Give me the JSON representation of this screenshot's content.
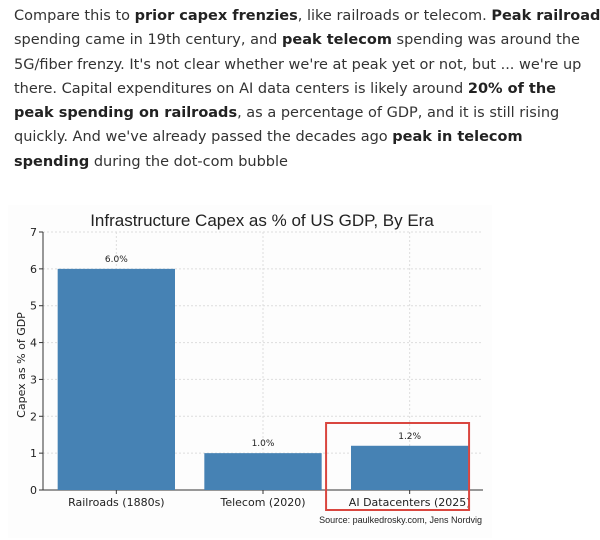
{
  "paragraph": {
    "lines": [
      [
        {
          "text": "Compare this to ",
          "bold": false
        },
        {
          "text": "prior capex frenzies",
          "bold": true
        },
        {
          "text": ", like railroads or telecom. ",
          "bold": false
        },
        {
          "text": "Peak railroad",
          "bold": true
        }
      ],
      [
        {
          "text": "spending came in 19th century, and ",
          "bold": false
        },
        {
          "text": "peak telecom",
          "bold": true
        },
        {
          "text": " spending was around the",
          "bold": false
        }
      ],
      [
        {
          "text": "5G/fiber frenzy. It's not clear whether we're at peak yet or not, but ... we're up",
          "bold": false
        }
      ],
      [
        {
          "text": "there. Capital expenditures on AI data centers is likely around ",
          "bold": false
        },
        {
          "text": "20% of the",
          "bold": true
        }
      ],
      [
        {
          "text": "peak spending on railroads",
          "bold": true
        },
        {
          "text": ", as a percentage of GDP, and it is still rising",
          "bold": false
        }
      ],
      [
        {
          "text": "quickly. And we've already passed the decades ago ",
          "bold": false
        },
        {
          "text": "peak in telecom",
          "bold": true
        }
      ],
      [
        {
          "text": "spending",
          "bold": true
        },
        {
          "text": " during the dot-com bubble",
          "bold": false
        }
      ]
    ]
  },
  "chart_data": {
    "type": "bar",
    "title": "Infrastructure Capex as % of US GDP, By Era",
    "ylabel": "Capex as % of GDP",
    "categories": [
      "Railroads (1880s)",
      "Telecom (2020)",
      "AI Datacenters (2025)"
    ],
    "values": [
      6.0,
      1.0,
      1.2
    ],
    "value_labels": [
      "6.0%",
      "1.0%",
      "1.2%"
    ],
    "color": "#4682b4",
    "ylim": [
      0,
      7
    ],
    "yticks": [
      0,
      1,
      2,
      3,
      4,
      5,
      6,
      7
    ],
    "grid": true,
    "source": "Source: paulkedrosky.com, Jens Nordvig"
  }
}
